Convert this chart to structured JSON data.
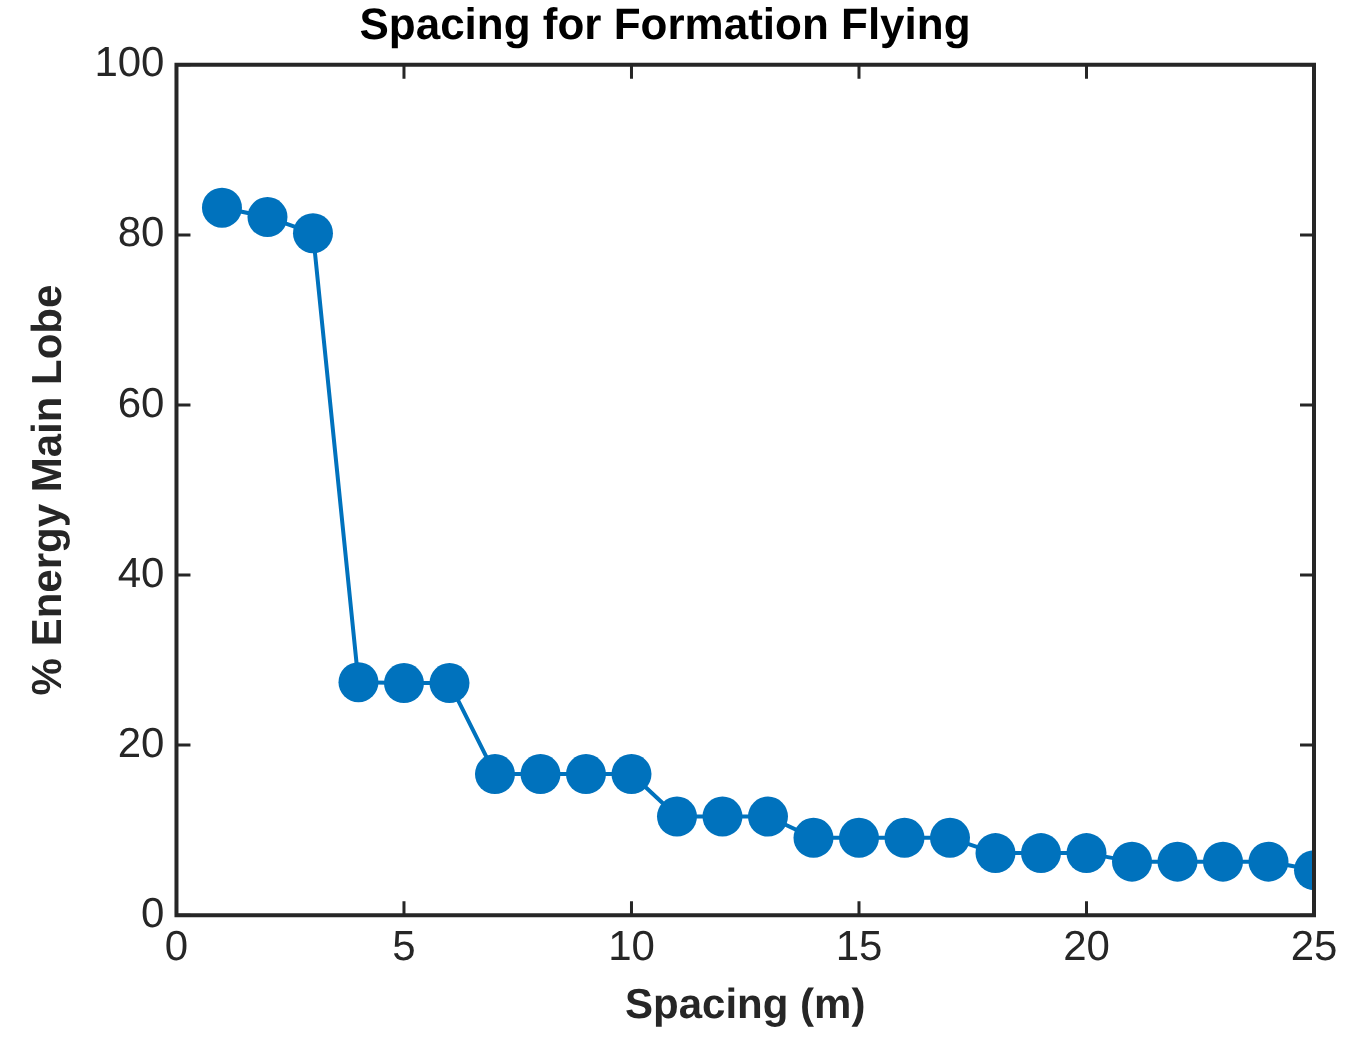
{
  "chart_data": {
    "type": "line",
    "title": "Spacing for Formation Flying",
    "xlabel": "Spacing (m)",
    "ylabel": "% Energy Main Lobe",
    "x": [
      1,
      2,
      3,
      4,
      5,
      6,
      7,
      8,
      9,
      10,
      11,
      12,
      13,
      14,
      15,
      16,
      17,
      18,
      19,
      20,
      21,
      22,
      23,
      24,
      25
    ],
    "series": [
      {
        "color": "#0072bd",
        "values": [
          83.2,
          82.1,
          80.2,
          27.4,
          27.3,
          27.3,
          16.6,
          16.6,
          16.6,
          16.6,
          11.6,
          11.6,
          11.6,
          9.1,
          9.1,
          9.1,
          9.1,
          7.3,
          7.3,
          7.3,
          6.3,
          6.3,
          6.3,
          6.3,
          5.3
        ]
      }
    ],
    "xlim": [
      0,
      25
    ],
    "xticks": [
      0,
      5,
      10,
      15,
      20,
      25
    ],
    "ylim": [
      0,
      100
    ],
    "yticks": [
      0,
      20,
      40,
      60,
      80,
      100
    ],
    "grid": false,
    "legend": false,
    "marker": "circle",
    "line_style": "solid"
  }
}
